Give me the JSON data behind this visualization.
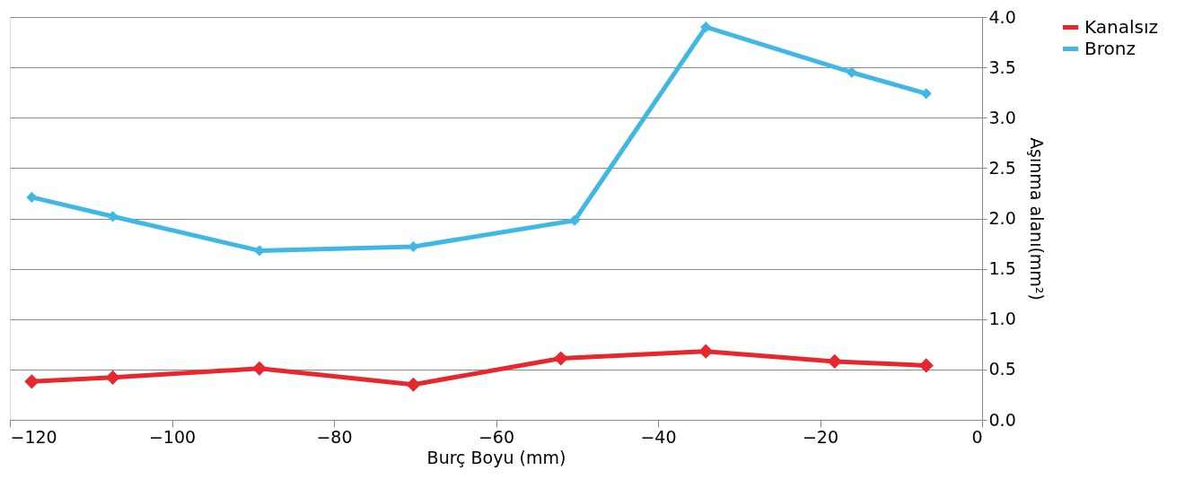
{
  "chart_data": {
    "type": "line",
    "xlabel": "Burç Boyu (mm)",
    "ylabel": "Aşınma alanı(mm²)",
    "x": [
      -117.3,
      -107.3,
      -89.2,
      -70.2,
      -50.3,
      -34.1,
      -16.1,
      -6.9
    ],
    "series": [
      {
        "name": "Kanalsız",
        "color": "#e8262e",
        "x": [
          -117.3,
          -107.3,
          -89.2,
          -70.2,
          -52.0,
          -34.1,
          -18.2,
          -6.9
        ],
        "values": [
          0.38,
          0.42,
          0.51,
          0.35,
          0.61,
          0.68,
          0.58,
          0.54
        ]
      },
      {
        "name": "Bronz",
        "color": "#41b8e4",
        "values": [
          2.21,
          2.02,
          1.68,
          1.72,
          1.98,
          3.9,
          3.45,
          3.24
        ]
      }
    ],
    "xlim": [
      -120,
      0
    ],
    "xticks": [
      -120,
      -100,
      -80,
      -60,
      -40,
      -20,
      0
    ],
    "ylim": [
      0,
      4
    ],
    "yticks": [
      {
        "value": 0,
        "label": "0.0"
      },
      {
        "value": 0.5,
        "label": "0.5"
      },
      {
        "value": 1,
        "label": "1.0"
      },
      {
        "value": 1.5,
        "label": "1.5"
      },
      {
        "value": 2,
        "label": "2.0"
      },
      {
        "value": 2.5,
        "label": "2.5"
      },
      {
        "value": 3,
        "label": "3.0"
      },
      {
        "value": 3.5,
        "label": "3.5"
      },
      {
        "value": 4,
        "label": "4.0"
      }
    ],
    "grid": "y",
    "legend": "right",
    "marker": "diamond",
    "line_style": "solid"
  }
}
